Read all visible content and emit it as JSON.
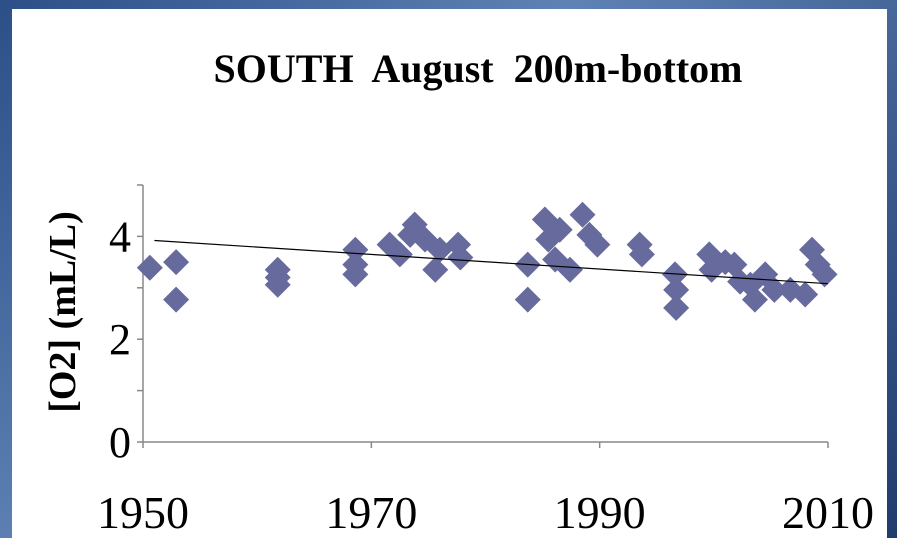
{
  "chart_data": {
    "type": "scatter",
    "title": "SOUTH  August  200m-bottom",
    "y_label": "[O2] (mL/L)",
    "xlim": [
      1950,
      2010
    ],
    "xticks": [
      1950,
      1970,
      1990,
      2010
    ],
    "ylim": [
      0,
      5
    ],
    "yticks": [
      0,
      2,
      4
    ],
    "minor_yticks": [
      1,
      3,
      5
    ],
    "series": [
      {
        "color": "#676a9d",
        "marker": "diamond",
        "x": [
          1950.6,
          1952.9,
          1952.9,
          1961.8,
          1961.8,
          1961.8,
          1968.6,
          1968.6,
          1968.6,
          1971.6,
          1972.5,
          1973.4,
          1973.8,
          1974.7,
          1975.6,
          1976,
          1977.6,
          1977.8,
          1983.7,
          1983.7,
          1985.2,
          1985.5,
          1986.1,
          1986.5,
          1987.4,
          1988.5,
          1989.1,
          1989.8,
          1993.5,
          1993.7,
          1996.6,
          1996.7,
          1996.7,
          1999.6,
          1999.8,
          2001,
          2001.8,
          2002.3,
          2003.2,
          2003.6,
          2004.5,
          2005.3,
          2006.7,
          2008,
          2008.6,
          2009.1,
          2009.7
        ],
        "values": [
          3.39,
          3.5,
          2.77,
          3.35,
          3.06,
          3.2,
          3.74,
          3.45,
          3.26,
          3.84,
          3.65,
          4.03,
          4.23,
          3.94,
          3.35,
          3.74,
          3.84,
          3.59,
          2.77,
          3.45,
          4.33,
          3.94,
          3.55,
          4.13,
          3.35,
          4.42,
          4.03,
          3.84,
          3.84,
          3.65,
          3.26,
          2.96,
          2.61,
          3.65,
          3.35,
          3.5,
          3.45,
          3.12,
          3.06,
          2.77,
          3.26,
          2.96,
          2.96,
          2.87,
          3.74,
          3.45,
          3.26
        ]
      }
    ],
    "trendline": {
      "color": "#000000",
      "x": [
        1951,
        2010
      ],
      "values": [
        3.92,
        3.08
      ]
    }
  }
}
